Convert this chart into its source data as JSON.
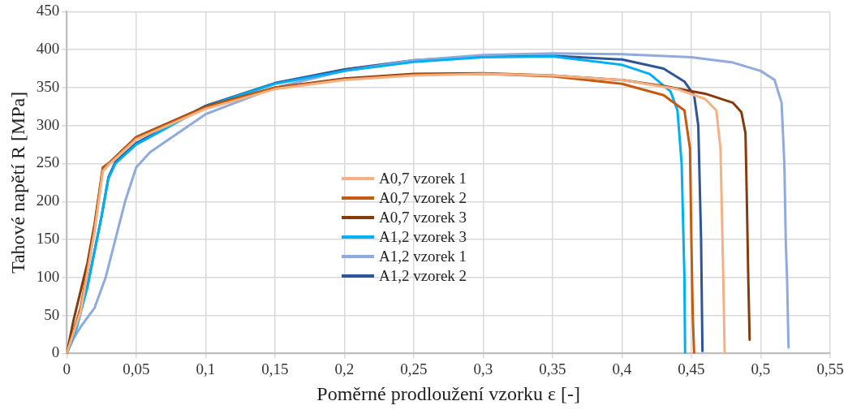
{
  "chart_data": {
    "type": "line",
    "xlabel": "Poměrné prodloužení vzorku ε [-]",
    "ylabel": "Tahové napětí R [MPa]",
    "xlim": [
      0,
      0.55
    ],
    "xticks": [
      {
        "value": 0,
        "label": "0"
      },
      {
        "value": 0.05,
        "label": "0,05"
      },
      {
        "value": 0.1,
        "label": "0,1"
      },
      {
        "value": 0.15,
        "label": "0,15"
      },
      {
        "value": 0.2,
        "label": "0,2"
      },
      {
        "value": 0.25,
        "label": "0,25"
      },
      {
        "value": 0.3,
        "label": "0,3"
      },
      {
        "value": 0.35,
        "label": "0,35"
      },
      {
        "value": 0.4,
        "label": "0,4"
      },
      {
        "value": 0.45,
        "label": "0,45"
      },
      {
        "value": 0.5,
        "label": "0,5"
      },
      {
        "value": 0.55,
        "label": "0,55"
      }
    ],
    "ylim": [
      0,
      450
    ],
    "yticks": [
      0,
      50,
      100,
      150,
      200,
      250,
      300,
      350,
      400,
      450
    ],
    "grid": true,
    "legend": "center",
    "marker": "none",
    "line_style": "solid",
    "series": [
      {
        "name": "A0,7 vzorek 1",
        "color": "#f4b183",
        "x": [
          0,
          0.01,
          0.02,
          0.026,
          0.03,
          0.05,
          0.1,
          0.15,
          0.2,
          0.25,
          0.3,
          0.35,
          0.4,
          0.44,
          0.46,
          0.468,
          0.471,
          0.473,
          0.474
        ],
        "values": [
          0,
          55,
          160,
          240,
          248,
          282,
          322,
          348,
          360,
          366,
          368,
          366,
          360,
          348,
          335,
          320,
          270,
          100,
          0
        ]
      },
      {
        "name": "A0,7 vzorek 2",
        "color": "#c55a11",
        "x": [
          0,
          0.01,
          0.02,
          0.026,
          0.03,
          0.05,
          0.1,
          0.15,
          0.2,
          0.25,
          0.3,
          0.35,
          0.4,
          0.43,
          0.445,
          0.449,
          0.45,
          0.451,
          0.452
        ],
        "values": [
          0,
          60,
          165,
          244,
          250,
          284,
          324,
          350,
          361,
          367,
          368,
          365,
          355,
          340,
          320,
          270,
          150,
          50,
          0
        ]
      },
      {
        "name": "A0,7 vzorek 3",
        "color": "#843c0c",
        "x": [
          0,
          0.005,
          0.015,
          0.02,
          0.026,
          0.03,
          0.05,
          0.1,
          0.15,
          0.2,
          0.25,
          0.3,
          0.35,
          0.4,
          0.43,
          0.46,
          0.48,
          0.486,
          0.489,
          0.49,
          0.491,
          0.492
        ],
        "values": [
          0,
          45,
          120,
          170,
          245,
          250,
          285,
          325,
          350,
          362,
          368,
          369,
          366,
          360,
          352,
          342,
          330,
          318,
          290,
          200,
          100,
          18
        ]
      },
      {
        "name": "A1,2 vzorek 3",
        "color": "#00b0f0",
        "x": [
          0,
          0.007,
          0.015,
          0.025,
          0.03,
          0.035,
          0.05,
          0.1,
          0.15,
          0.2,
          0.25,
          0.3,
          0.35,
          0.4,
          0.42,
          0.435,
          0.44,
          0.443,
          0.445,
          0.4455
        ],
        "values": [
          0,
          33,
          88,
          180,
          230,
          250,
          275,
          325,
          355,
          372,
          384,
          390,
          391,
          380,
          368,
          345,
          320,
          250,
          100,
          0
        ]
      },
      {
        "name": "A1,2 vzorek 1",
        "color": "#8faadc",
        "x": [
          0,
          0.005,
          0.01,
          0.02,
          0.028,
          0.035,
          0.042,
          0.05,
          0.06,
          0.1,
          0.15,
          0.2,
          0.25,
          0.3,
          0.35,
          0.4,
          0.45,
          0.48,
          0.5,
          0.51,
          0.515,
          0.517,
          0.518,
          0.519,
          0.52
        ],
        "values": [
          0,
          20,
          35,
          60,
          100,
          150,
          200,
          245,
          265,
          315,
          350,
          372,
          386,
          393,
          395,
          394,
          390,
          383,
          372,
          360,
          330,
          250,
          150,
          95,
          8
        ]
      },
      {
        "name": "A1,2 vzorek 2",
        "color": "#2f5597",
        "x": [
          0,
          0.007,
          0.015,
          0.025,
          0.03,
          0.035,
          0.05,
          0.1,
          0.15,
          0.2,
          0.25,
          0.3,
          0.35,
          0.4,
          0.43,
          0.445,
          0.452,
          0.455,
          0.457,
          0.458
        ],
        "values": [
          0,
          40,
          90,
          180,
          232,
          252,
          277,
          326,
          356,
          374,
          386,
          391,
          392,
          387,
          375,
          358,
          340,
          300,
          150,
          3
        ]
      }
    ]
  }
}
